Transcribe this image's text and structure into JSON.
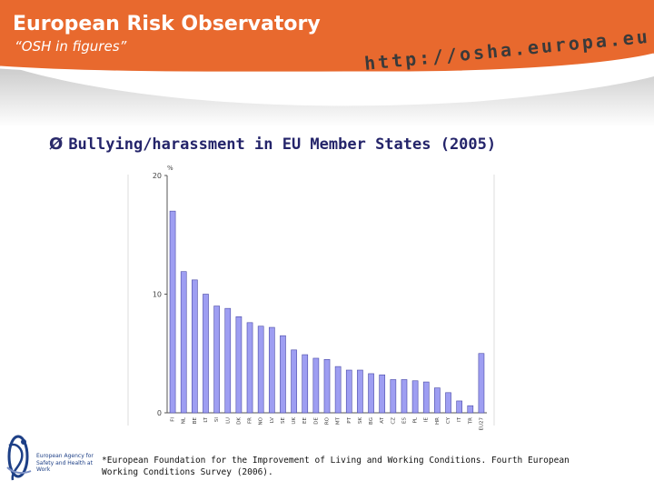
{
  "header": {
    "title": "European Risk Observatory",
    "subtitle": "“OSH in figures”",
    "url": "http://osha.europa.eu",
    "color": "#e8692e"
  },
  "slide": {
    "bullet": "Ø",
    "heading": "Bullying/harassment in EU Member States (2005)"
  },
  "chart_data": {
    "type": "bar",
    "ylabel": "%",
    "ylim": [
      0,
      20
    ],
    "yticks": [
      0,
      10,
      20
    ],
    "grid": false,
    "bar_color": "#9e9ef2",
    "categories": [
      "FI",
      "NL",
      "BE",
      "LT",
      "SI",
      "LU",
      "DK",
      "FR",
      "NO",
      "LV",
      "SE",
      "UK",
      "EE",
      "DE",
      "RO",
      "MT",
      "PT",
      "SK",
      "BG",
      "AT",
      "CZ",
      "ES",
      "PL",
      "IE",
      "HR",
      "CY",
      "IT",
      "TR",
      "EU27"
    ],
    "values": [
      17.0,
      11.9,
      11.2,
      10.0,
      9.0,
      8.8,
      8.1,
      7.6,
      7.3,
      7.2,
      6.5,
      5.3,
      4.9,
      4.6,
      4.5,
      3.9,
      3.6,
      3.6,
      3.3,
      3.2,
      2.8,
      2.8,
      2.7,
      2.6,
      2.1,
      1.7,
      1.0,
      0.6,
      5.0
    ]
  },
  "footnote": "*European Foundation for the Improvement of Living and Working Conditions. Fourth European Working Conditions Survey (2006).",
  "logo": {
    "text": "European Agency for Safety and Health at Work",
    "color": "#1d3f86"
  }
}
